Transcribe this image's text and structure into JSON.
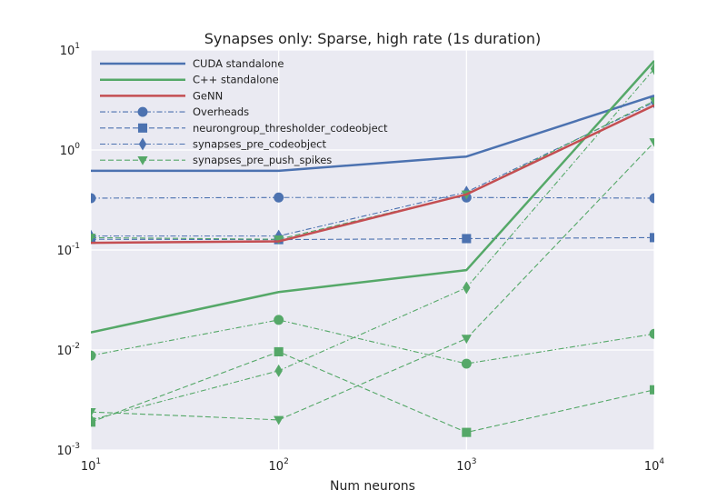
{
  "chart_data": {
    "type": "line",
    "title": "Synapses only: Sparse, high rate (1s duration)",
    "xlabel": "Num neurons",
    "ylabel": "",
    "x": [
      10,
      100,
      1000,
      10000
    ],
    "x_scale": "log",
    "y_scale": "log",
    "xlim": [
      10,
      10000
    ],
    "ylim": [
      0.001,
      10
    ],
    "x_ticks": [
      {
        "value": 10,
        "base": "10",
        "exp": "1"
      },
      {
        "value": 100,
        "base": "10",
        "exp": "2"
      },
      {
        "value": 1000,
        "base": "10",
        "exp": "3"
      },
      {
        "value": 10000,
        "base": "10",
        "exp": "4"
      }
    ],
    "y_ticks": [
      {
        "value": 0.001,
        "base": "10",
        "exp": "-3"
      },
      {
        "value": 0.01,
        "base": "10",
        "exp": "-2"
      },
      {
        "value": 0.1,
        "base": "10",
        "exp": "-1"
      },
      {
        "value": 1,
        "base": "10",
        "exp": "0"
      },
      {
        "value": 10,
        "base": "10",
        "exp": "1"
      }
    ],
    "grid": true,
    "legend_position": "top-left",
    "background": "#eaeaf2",
    "series": [
      {
        "name": "CUDA standalone",
        "color": "#4c72b0",
        "dash": "solid",
        "marker": "none",
        "width": 2.5,
        "values": [
          0.62,
          0.62,
          0.86,
          3.5
        ],
        "legend": true
      },
      {
        "name": "C++ standalone",
        "color": "#55a868",
        "dash": "solid",
        "marker": "none",
        "width": 2.5,
        "values": [
          0.015,
          0.038,
          0.063,
          7.8
        ],
        "legend": true
      },
      {
        "name": "GeNN",
        "color": "#c44e52",
        "dash": "solid",
        "marker": "none",
        "width": 2.5,
        "values": [
          0.118,
          0.122,
          0.36,
          2.8
        ],
        "legend": true
      },
      {
        "name": "Overheads",
        "color": "#4c72b0",
        "dash": "dashdot",
        "marker": "circle",
        "width": 1.1,
        "values": [
          0.33,
          0.335,
          0.335,
          0.33
        ],
        "legend": true
      },
      {
        "name": "neurongroup_thresholder_codeobject",
        "color": "#4c72b0",
        "dash": "dashed",
        "marker": "square",
        "width": 1.1,
        "values": [
          0.128,
          0.127,
          0.13,
          0.133
        ],
        "legend": true
      },
      {
        "name": "synapses_pre_codeobject",
        "color": "#4c72b0",
        "dash": "dashdot",
        "marker": "diamond",
        "width": 1.1,
        "values": [
          0.138,
          0.138,
          0.38,
          3.0
        ],
        "legend": true
      },
      {
        "name": "synapses_pre_push_spikes",
        "color": "#55a868",
        "dash": "dashed",
        "marker": "triangle",
        "width": 1.1,
        "values": [
          0.133,
          0.128,
          0.36,
          3.1
        ],
        "legend": true
      },
      {
        "name": "",
        "color": "#55a868",
        "dash": "dashdot",
        "marker": "circle",
        "width": 1.1,
        "values": [
          0.0088,
          0.02,
          0.0073,
          0.0145
        ],
        "legend": false
      },
      {
        "name": "",
        "color": "#55a868",
        "dash": "dashed",
        "marker": "square",
        "width": 1.1,
        "values": [
          0.0019,
          0.0096,
          0.0015,
          0.004
        ],
        "legend": false
      },
      {
        "name": "",
        "color": "#55a868",
        "dash": "dashdot",
        "marker": "diamond",
        "width": 1.1,
        "values": [
          0.002,
          0.0062,
          0.042,
          6.5
        ],
        "legend": false
      },
      {
        "name": "",
        "color": "#55a868",
        "dash": "dashed",
        "marker": "triangle",
        "width": 1.1,
        "values": [
          0.0024,
          0.002,
          0.013,
          1.2
        ],
        "legend": false
      }
    ]
  }
}
